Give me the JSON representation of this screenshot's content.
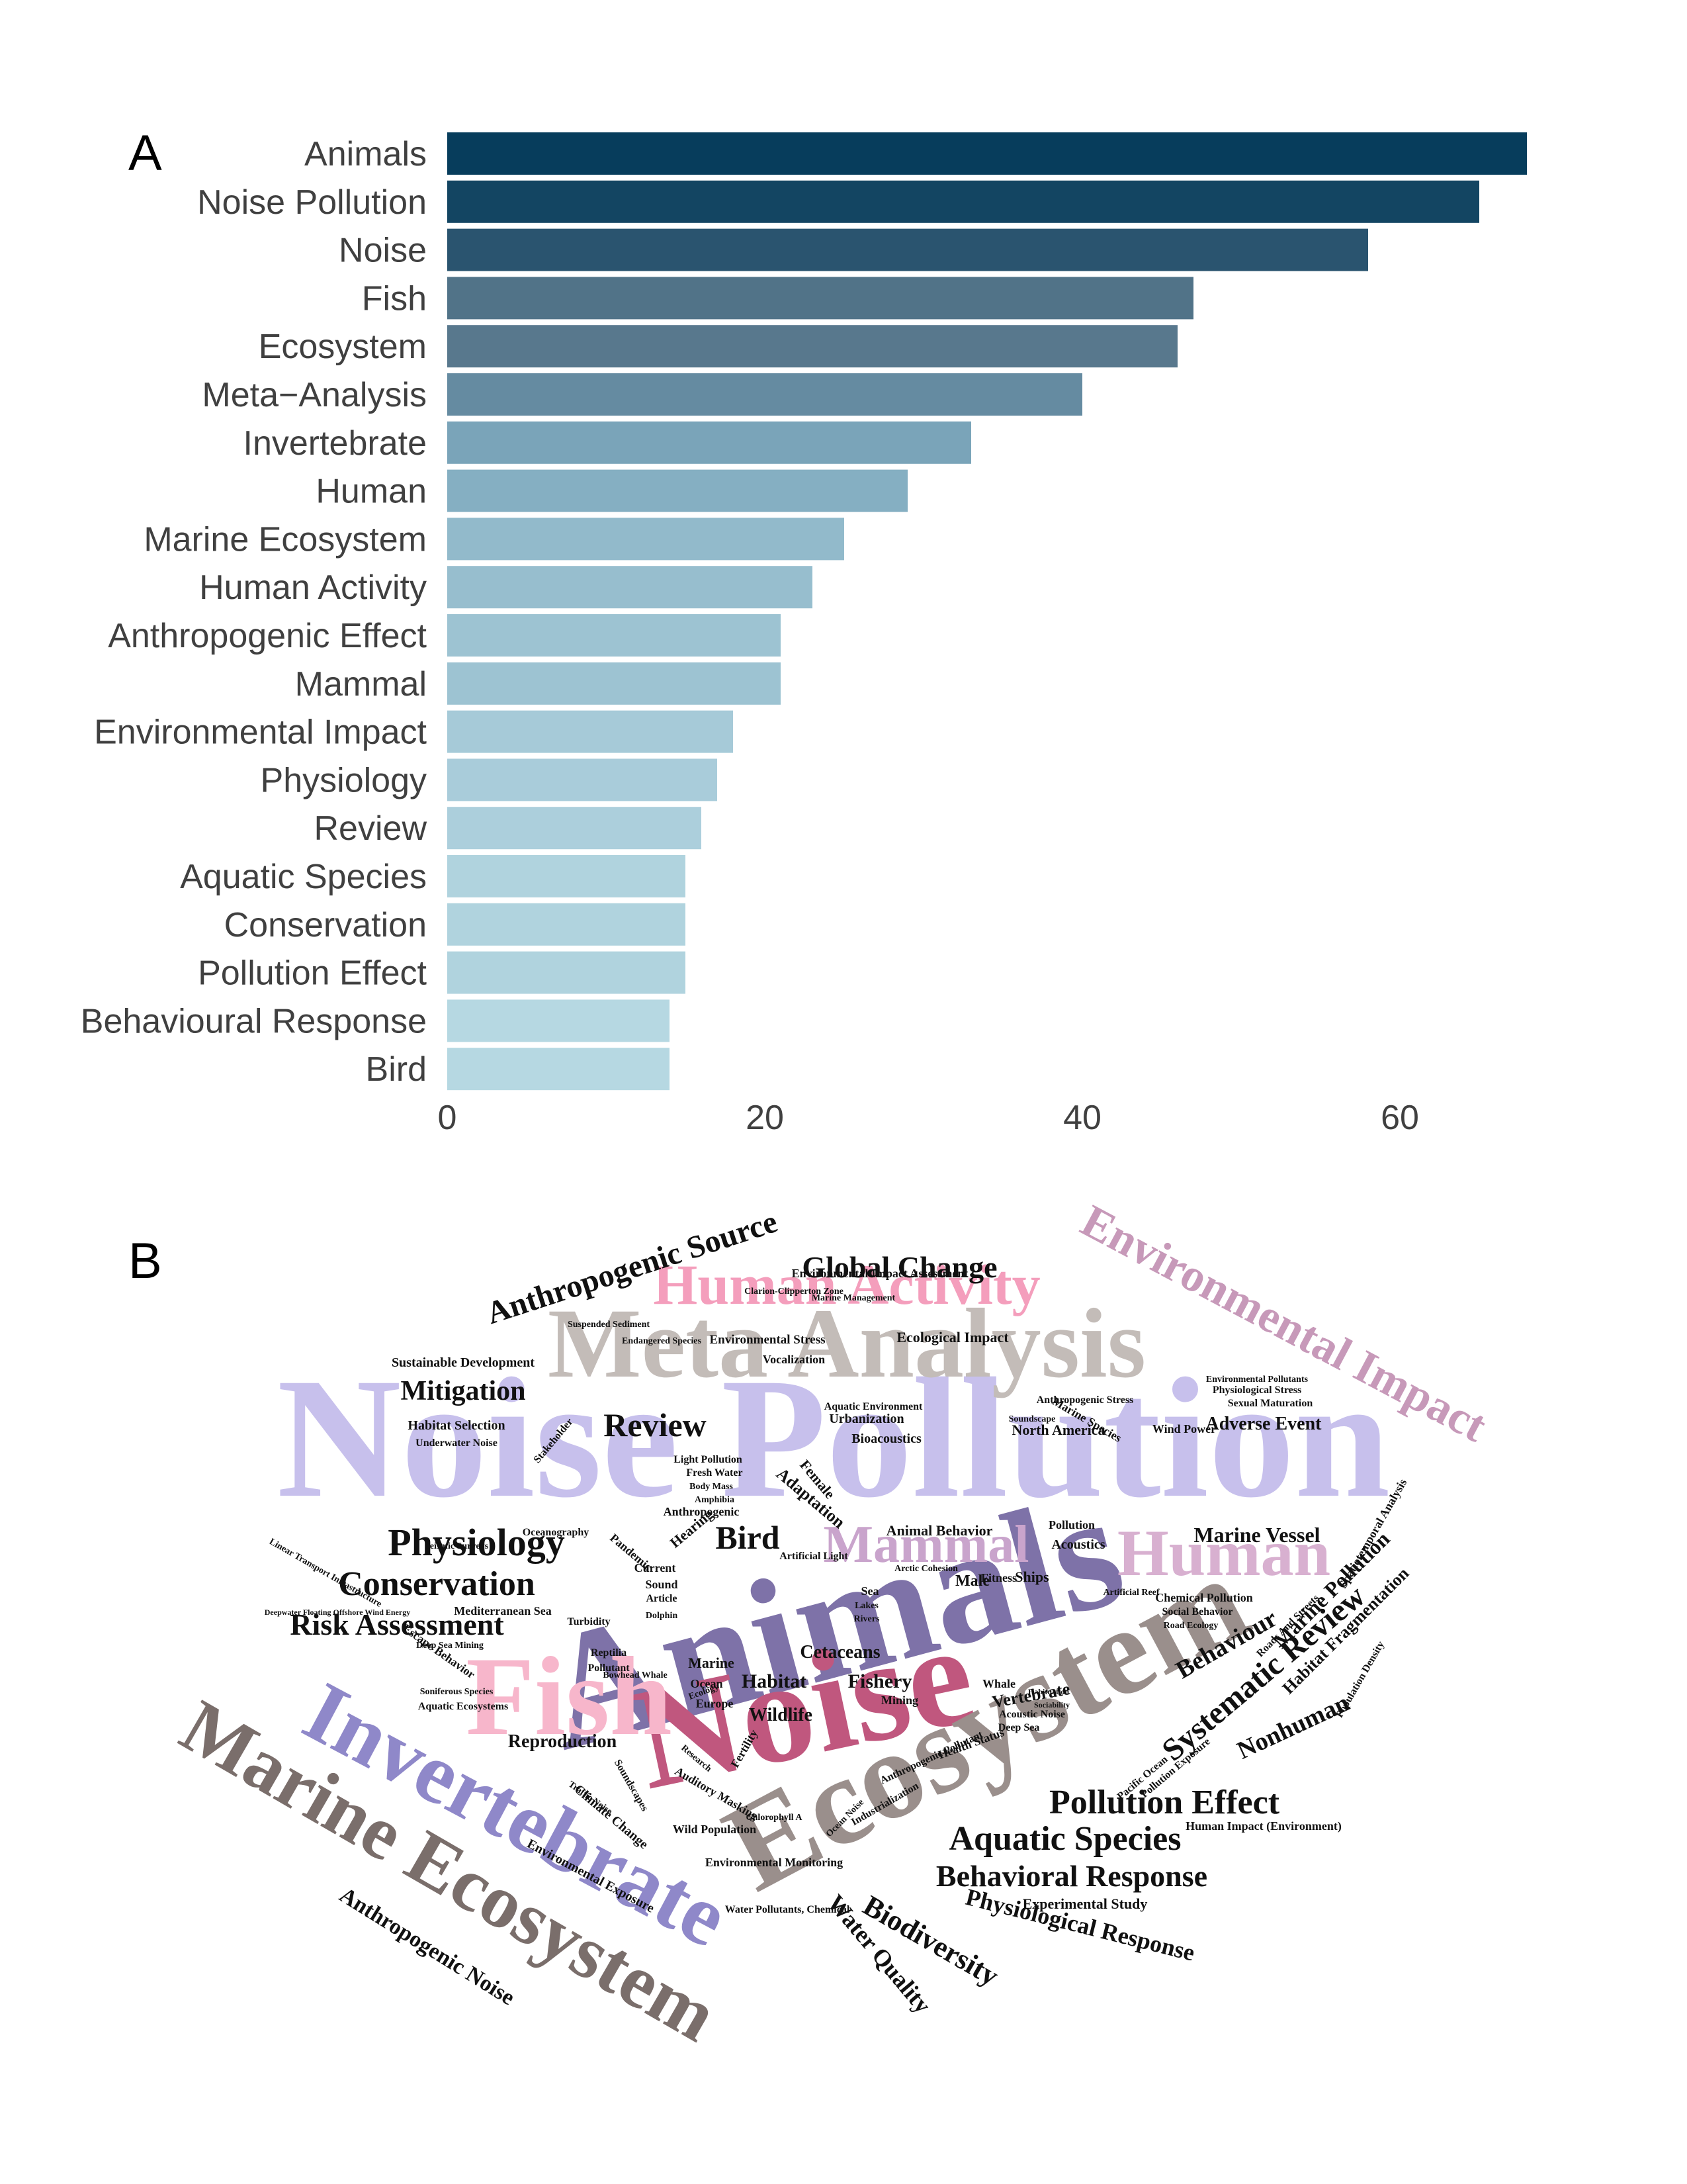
{
  "panels": {
    "a": "A",
    "b": "B"
  },
  "chart_data": {
    "type": "bar",
    "orientation": "horizontal",
    "title": "",
    "xlabel": "",
    "ylabel": "",
    "xlim": [
      0,
      70
    ],
    "grid": false,
    "ticks": [
      0,
      20,
      40,
      60
    ],
    "tick_labels": [
      "0",
      "20",
      "40",
      "60"
    ],
    "categories": [
      "Animals",
      "Noise Pollution",
      "Noise",
      "Fish",
      "Ecosystem",
      "Meta−Analysis",
      "Invertebrate",
      "Human",
      "Marine Ecosystem",
      "Human Activity",
      "Anthropogenic Effect",
      "Mammal",
      "Environmental Impact",
      "Physiology",
      "Review",
      "Aquatic Species",
      "Conservation",
      "Pollution Effect",
      "Behavioural Response",
      "Bird"
    ],
    "values": [
      68,
      65,
      58,
      47,
      46,
      40,
      33,
      29,
      25,
      23,
      21,
      21,
      18,
      17,
      16,
      15,
      15,
      15,
      14,
      14
    ],
    "colors": [
      "#073d5c",
      "#134562",
      "#2a546f",
      "#517388",
      "#58788d",
      "#658ba1",
      "#7aa4b9",
      "#85afc2",
      "#92bacb",
      "#97bece",
      "#9dc3d2",
      "#9dc3d2",
      "#a6cad8",
      "#a9ccda",
      "#accfdc",
      "#b0d3de",
      "#b0d3de",
      "#b0d3de",
      "#b6d8e2",
      "#b6d8e2"
    ]
  },
  "wordcloud": {
    "words": [
      {
        "text": "Noise Pollution",
        "color": "#c7c0ec"
      },
      {
        "text": "Animals",
        "color": "#7e72a8"
      },
      {
        "text": "Noise",
        "color": "#c0577e"
      },
      {
        "text": "Ecosystem",
        "color": "#9a8f8c"
      },
      {
        "text": "Meta Analysis",
        "color": "#c3bcb8"
      },
      {
        "text": "Fish",
        "color": "#f7b6cb"
      },
      {
        "text": "Invertebrate",
        "color": "#8f88c9"
      },
      {
        "text": "Marine Ecosystem",
        "color": "#7a6e6b"
      },
      {
        "text": "Human Activity",
        "color": "#f49ebc"
      },
      {
        "text": "Environmental Impact",
        "color": "#c799b9"
      },
      {
        "text": "Human",
        "color": "#d8b0d0"
      },
      {
        "text": "Mammal",
        "color": "#c9a4cc"
      },
      {
        "text": "Anthropogenic Source",
        "color": "#111111"
      },
      {
        "text": "Global Change",
        "color": "#111111"
      },
      {
        "text": "Mitigation",
        "color": "#111111"
      },
      {
        "text": "Review",
        "color": "#111111"
      },
      {
        "text": "Physiology",
        "color": "#111111"
      },
      {
        "text": "Conservation",
        "color": "#111111"
      },
      {
        "text": "Risk Assessment",
        "color": "#111111"
      },
      {
        "text": "Bird",
        "color": "#111111"
      },
      {
        "text": "Systematic Review",
        "color": "#111111"
      },
      {
        "text": "Pollution Effect",
        "color": "#111111"
      },
      {
        "text": "Aquatic Species",
        "color": "#111111"
      },
      {
        "text": "Behavioral Response",
        "color": "#111111"
      },
      {
        "text": "Biodiversity",
        "color": "#111111"
      },
      {
        "text": "Physiological Response",
        "color": "#111111"
      },
      {
        "text": "Anthropogenic Noise",
        "color": "#111111"
      },
      {
        "text": "Marine Vessel",
        "color": "#111111"
      },
      {
        "text": "Behaviour",
        "color": "#111111"
      },
      {
        "text": "Nonhuman",
        "color": "#111111"
      },
      {
        "text": "Marine Pollution",
        "color": "#111111"
      },
      {
        "text": "Habitat",
        "color": "#111111"
      },
      {
        "text": "Cetaceans",
        "color": "#111111"
      },
      {
        "text": "Fishery",
        "color": "#111111"
      },
      {
        "text": "Wildlife",
        "color": "#111111"
      },
      {
        "text": "Vertebrate",
        "color": "#111111"
      },
      {
        "text": "Reproduction",
        "color": "#111111"
      },
      {
        "text": "Adverse Event",
        "color": "#111111"
      },
      {
        "text": "Sustainable Development",
        "color": "#111111"
      },
      {
        "text": "Habitat Selection",
        "color": "#111111"
      },
      {
        "text": "Environmental Stress",
        "color": "#111111"
      },
      {
        "text": "Ecological Impact",
        "color": "#111111"
      },
      {
        "text": "North America",
        "color": "#111111"
      },
      {
        "text": "Animal Behavior",
        "color": "#111111"
      },
      {
        "text": "Mediterranean Sea",
        "color": "#111111"
      },
      {
        "text": "Water Quality",
        "color": "#111111"
      },
      {
        "text": "Experimental Study",
        "color": "#111111"
      },
      {
        "text": "Habitat Fragmentation",
        "color": "#111111"
      },
      {
        "text": "Environmental Exposure",
        "color": "#111111"
      },
      {
        "text": "Climate Change",
        "color": "#111111"
      },
      {
        "text": "Hearing",
        "color": "#111111"
      },
      {
        "text": "Adaptation",
        "color": "#111111"
      },
      {
        "text": "Female",
        "color": "#111111"
      },
      {
        "text": "Urbanization",
        "color": "#111111"
      },
      {
        "text": "Bioacoustics",
        "color": "#111111"
      },
      {
        "text": "Vocalization",
        "color": "#111111"
      },
      {
        "text": "Acoustics",
        "color": "#111111"
      },
      {
        "text": "Pollution",
        "color": "#111111"
      },
      {
        "text": "Oceanography",
        "color": "#111111"
      },
      {
        "text": "Pandemic",
        "color": "#111111"
      },
      {
        "text": "Current",
        "color": "#111111"
      },
      {
        "text": "Sound",
        "color": "#111111"
      },
      {
        "text": "Article",
        "color": "#111111"
      },
      {
        "text": "Dolphin",
        "color": "#111111"
      },
      {
        "text": "Turbidity",
        "color": "#111111"
      },
      {
        "text": "Reptilia",
        "color": "#111111"
      },
      {
        "text": "Pollutant",
        "color": "#111111"
      },
      {
        "text": "Marine",
        "color": "#111111"
      },
      {
        "text": "Ocean",
        "color": "#111111"
      },
      {
        "text": "Europe",
        "color": "#111111"
      },
      {
        "text": "Ecology",
        "color": "#111111"
      },
      {
        "text": "Fertility",
        "color": "#111111"
      },
      {
        "text": "Research",
        "color": "#111111"
      },
      {
        "text": "Mining",
        "color": "#111111"
      },
      {
        "text": "Whale",
        "color": "#111111"
      },
      {
        "text": "Sea",
        "color": "#111111"
      },
      {
        "text": "Lakes",
        "color": "#111111"
      },
      {
        "text": "Rivers",
        "color": "#111111"
      },
      {
        "text": "Light Pollution",
        "color": "#111111"
      },
      {
        "text": "Fresh Water",
        "color": "#111111"
      },
      {
        "text": "Body Mass",
        "color": "#111111"
      },
      {
        "text": "Amphibia",
        "color": "#111111"
      },
      {
        "text": "Anthropogenic",
        "color": "#111111"
      },
      {
        "text": "Underwater Noise",
        "color": "#111111"
      },
      {
        "text": "Stakeholder",
        "color": "#111111"
      },
      {
        "text": "Seismic Surveys",
        "color": "#111111"
      },
      {
        "text": "Escape Behavior",
        "color": "#111111"
      },
      {
        "text": "Deep Sea Mining",
        "color": "#111111"
      },
      {
        "text": "Linear Transport Infrastructure",
        "color": "#111111"
      },
      {
        "text": "Deepwater Floating Offshore Wind Energy",
        "color": "#111111"
      },
      {
        "text": "Aquatic Environment",
        "color": "#111111"
      },
      {
        "text": "Environmental Impact Assessment",
        "color": "#111111"
      },
      {
        "text": "Suspended Sediment",
        "color": "#111111"
      },
      {
        "text": "Endangered Species",
        "color": "#111111"
      },
      {
        "text": "Clarion-Clipperton Zone",
        "color": "#111111"
      },
      {
        "text": "Marine Management",
        "color": "#111111"
      },
      {
        "text": "Artificial Light",
        "color": "#111111"
      },
      {
        "text": "Arctic Cohesion",
        "color": "#111111"
      },
      {
        "text": "Male",
        "color": "#111111"
      },
      {
        "text": "Fitness",
        "color": "#111111"
      },
      {
        "text": "Ships",
        "color": "#111111"
      },
      {
        "text": "Chemical Pollution",
        "color": "#111111"
      },
      {
        "text": "Social Behavior",
        "color": "#111111"
      },
      {
        "text": "Road Ecology",
        "color": "#111111"
      },
      {
        "text": "Artificial Reef",
        "color": "#111111"
      },
      {
        "text": "Spatiotemporal Analysis",
        "color": "#111111"
      },
      {
        "text": "Roads And Streets",
        "color": "#111111"
      },
      {
        "text": "Population Density",
        "color": "#111111"
      },
      {
        "text": "Sexual Maturation",
        "color": "#111111"
      },
      {
        "text": "Physiological Stress",
        "color": "#111111"
      },
      {
        "text": "Environmental Pollutants",
        "color": "#111111"
      },
      {
        "text": "Wind Power",
        "color": "#111111"
      },
      {
        "text": "Anthropogenic Stress",
        "color": "#111111"
      },
      {
        "text": "Soundscape",
        "color": "#111111"
      },
      {
        "text": "Marine Species",
        "color": "#111111"
      },
      {
        "text": "Pacific Ocean",
        "color": "#111111"
      },
      {
        "text": "Pollution Exposure",
        "color": "#111111"
      },
      {
        "text": "Human Impact (Environment)",
        "color": "#111111"
      },
      {
        "text": "Acoustic Noise",
        "color": "#111111"
      },
      {
        "text": "Deep Sea",
        "color": "#111111"
      },
      {
        "text": "Sociability",
        "color": "#111111"
      },
      {
        "text": "Habituation",
        "color": "#111111"
      },
      {
        "text": "Health Status",
        "color": "#111111"
      },
      {
        "text": "Industrialization",
        "color": "#111111"
      },
      {
        "text": "Anthropogenic Pollutant",
        "color": "#111111"
      },
      {
        "text": "Chlorophyll A",
        "color": "#111111"
      },
      {
        "text": "Auditory Masking",
        "color": "#111111"
      },
      {
        "text": "Wild Population",
        "color": "#111111"
      },
      {
        "text": "Environmental Monitoring",
        "color": "#111111"
      },
      {
        "text": "Water Pollutants, Chemical",
        "color": "#111111"
      },
      {
        "text": "Ocean Noise",
        "color": "#111111"
      },
      {
        "text": "Soundscapes",
        "color": "#111111"
      },
      {
        "text": "Traffic Noise",
        "color": "#111111"
      },
      {
        "text": "Aquatic Ecosystems",
        "color": "#111111"
      },
      {
        "text": "Soniferous Species",
        "color": "#111111"
      },
      {
        "text": "Bowhead Whale",
        "color": "#111111"
      }
    ]
  }
}
